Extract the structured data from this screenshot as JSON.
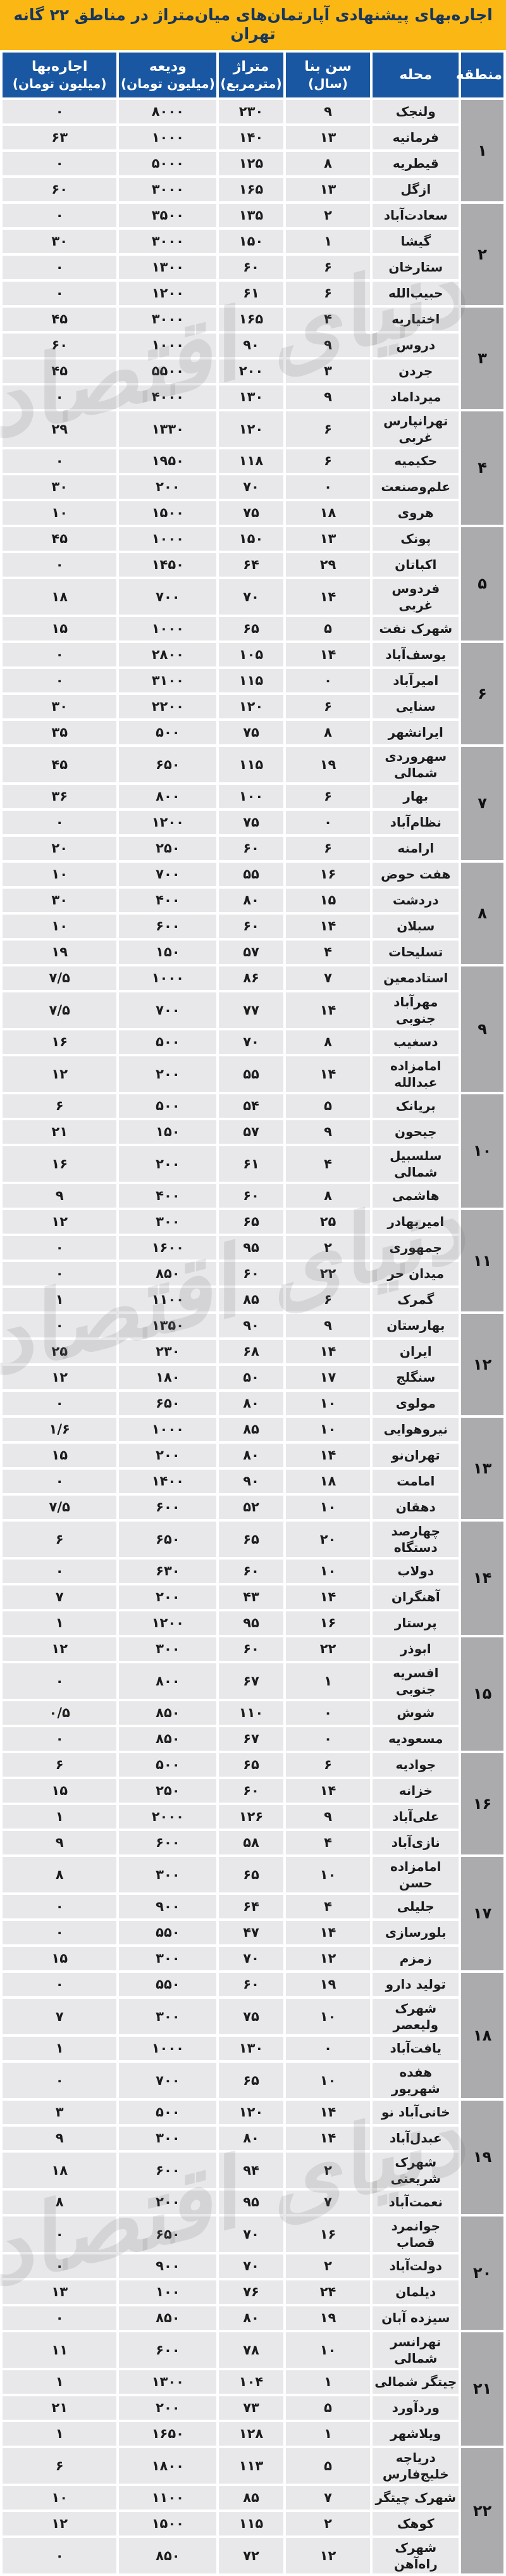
{
  "title": "اجاره‌بهای پیشنهادی آپارتمان‌های میان‌متراژ در مناطق ۲۲ گانه تهران",
  "watermark_text": "دنیای اقتصاد",
  "colors": {
    "title_bg": "#fbb713",
    "title_text": "#17365d",
    "header_bg": "#1a57a2",
    "header_text": "#ffffff",
    "row_bg": "#e8e8ea",
    "district_bg": "#ababae",
    "gap": "#ffffff"
  },
  "columns": [
    {
      "key": "district",
      "label": "منطقه",
      "unit": ""
    },
    {
      "key": "name",
      "label": "محله",
      "unit": ""
    },
    {
      "key": "age",
      "label": "سن بنا",
      "unit": "(سال)"
    },
    {
      "key": "area",
      "label": "متراژ",
      "unit": "(مترمربع)"
    },
    {
      "key": "deposit",
      "label": "ودیعه",
      "unit": "(میلیون تومان)"
    },
    {
      "key": "rent",
      "label": "اجاره‌بها",
      "unit": "(میلیون تومان)"
    }
  ],
  "districts": [
    {
      "district": "۱",
      "rows": [
        {
          "name": "ولنجک",
          "age": "۹",
          "area": "۲۳۰",
          "deposit": "۸۰۰۰",
          "rent": "۰"
        },
        {
          "name": "فرمانیه",
          "age": "۱۳",
          "area": "۱۴۰",
          "deposit": "۱۰۰۰",
          "rent": "۶۳"
        },
        {
          "name": "قیطریه",
          "age": "۸",
          "area": "۱۲۵",
          "deposit": "۵۰۰۰",
          "rent": "۰"
        },
        {
          "name": "ازگل",
          "age": "۱۳",
          "area": "۱۶۵",
          "deposit": "۳۰۰۰",
          "rent": "۶۰"
        }
      ]
    },
    {
      "district": "۲",
      "rows": [
        {
          "name": "سعادت‌آباد",
          "age": "۲",
          "area": "۱۳۵",
          "deposit": "۳۵۰۰",
          "rent": "۰"
        },
        {
          "name": "گیشا",
          "age": "۱",
          "area": "۱۵۰",
          "deposit": "۳۰۰۰",
          "rent": "۳۰"
        },
        {
          "name": "ستارخان",
          "age": "۶",
          "area": "۶۰",
          "deposit": "۱۳۰۰",
          "rent": "۰"
        },
        {
          "name": "حبیب‌الله",
          "age": "۶",
          "area": "۶۱",
          "deposit": "۱۲۰۰",
          "rent": "۰"
        }
      ]
    },
    {
      "district": "۳",
      "rows": [
        {
          "name": "اختیاریه",
          "age": "۴",
          "area": "۱۶۵",
          "deposit": "۳۰۰۰",
          "rent": "۴۵"
        },
        {
          "name": "دروس",
          "age": "۹",
          "area": "۹۰",
          "deposit": "۱۰۰۰",
          "rent": "۶۰"
        },
        {
          "name": "جردن",
          "age": "۳",
          "area": "۲۰۰",
          "deposit": "۵۵۰۰",
          "rent": "۴۵"
        },
        {
          "name": "میرداماد",
          "age": "۹",
          "area": "۱۳۰",
          "deposit": "۴۰۰۰",
          "rent": "۰"
        }
      ]
    },
    {
      "district": "۴",
      "rows": [
        {
          "name": "تهرانپارس\nغربی",
          "age": "۶",
          "area": "۱۲۰",
          "deposit": "۱۳۳۰",
          "rent": "۲۹"
        },
        {
          "name": "حکیمیه",
          "age": "۶",
          "area": "۱۱۸",
          "deposit": "۱۹۵۰",
          "rent": "۰"
        },
        {
          "name": "علم‌وصنعت",
          "age": "۰",
          "area": "۷۰",
          "deposit": "۲۰۰",
          "rent": "۳۰"
        },
        {
          "name": "هروی",
          "age": "۱۸",
          "area": "۷۵",
          "deposit": "۱۵۰۰",
          "rent": "۱۰"
        }
      ]
    },
    {
      "district": "۵",
      "rows": [
        {
          "name": "پونک",
          "age": "۱۳",
          "area": "۱۵۰",
          "deposit": "۱۰۰۰",
          "rent": "۴۵"
        },
        {
          "name": "اکباتان",
          "age": "۲۹",
          "area": "۶۴",
          "deposit": "۱۴۵۰",
          "rent": "۰"
        },
        {
          "name": "فردوس غربی",
          "age": "۱۴",
          "area": "۷۰",
          "deposit": "۷۰۰",
          "rent": "۱۸"
        },
        {
          "name": "شهرک نفت",
          "age": "۵",
          "area": "۶۵",
          "deposit": "۱۰۰۰",
          "rent": "۱۵"
        }
      ]
    },
    {
      "district": "۶",
      "rows": [
        {
          "name": "یوسف‌آباد",
          "age": "۱۴",
          "area": "۱۰۵",
          "deposit": "۲۸۰۰",
          "rent": "۰"
        },
        {
          "name": "امیرآباد",
          "age": "۰",
          "area": "۱۱۵",
          "deposit": "۳۱۰۰",
          "rent": "۰"
        },
        {
          "name": "سنایی",
          "age": "۶",
          "area": "۱۲۰",
          "deposit": "۲۲۰۰",
          "rent": "۳۰"
        },
        {
          "name": "ایرانشهر",
          "age": "۸",
          "area": "۷۵",
          "deposit": "۵۰۰",
          "rent": "۳۵"
        }
      ]
    },
    {
      "district": "۷",
      "rows": [
        {
          "name": "سهروردی\nشمالی",
          "age": "۱۹",
          "area": "۱۱۵",
          "deposit": "۶۵۰",
          "rent": "۴۵"
        },
        {
          "name": "بهار",
          "age": "۶",
          "area": "۱۰۰",
          "deposit": "۸۰۰",
          "rent": "۳۶"
        },
        {
          "name": "نظام‌آباد",
          "age": "۰",
          "area": "۷۵",
          "deposit": "۱۲۰۰",
          "rent": "۰"
        },
        {
          "name": "ارامنه",
          "age": "۶",
          "area": "۶۰",
          "deposit": "۲۵۰",
          "rent": "۲۰"
        }
      ]
    },
    {
      "district": "۸",
      "rows": [
        {
          "name": "هفت حوض",
          "age": "۱۶",
          "area": "۵۵",
          "deposit": "۷۰۰",
          "rent": "۱۰"
        },
        {
          "name": "دردشت",
          "age": "۱۵",
          "area": "۸۰",
          "deposit": "۴۰۰",
          "rent": "۳۰"
        },
        {
          "name": "سبلان",
          "age": "۱۴",
          "area": "۶۰",
          "deposit": "۶۰۰",
          "rent": "۱۰"
        },
        {
          "name": "تسلیحات",
          "age": "۴",
          "area": "۵۷",
          "deposit": "۱۵۰",
          "rent": "۱۹"
        }
      ]
    },
    {
      "district": "۹",
      "rows": [
        {
          "name": "استادمعین",
          "age": "۷",
          "area": "۸۶",
          "deposit": "۱۰۰۰",
          "rent": "۷/۵"
        },
        {
          "name": "مهرآباد جنوبی",
          "age": "۱۴",
          "area": "۷۷",
          "deposit": "۷۰۰",
          "rent": "۷/۵"
        },
        {
          "name": "دسغیب",
          "age": "۸",
          "area": "۷۰",
          "deposit": "۵۰۰",
          "rent": "۱۶"
        },
        {
          "name": "امامزاده\nعبدالله",
          "age": "۱۴",
          "area": "۵۵",
          "deposit": "۲۰۰",
          "rent": "۱۲"
        }
      ]
    },
    {
      "district": "۱۰",
      "rows": [
        {
          "name": "بریانک",
          "age": "۵",
          "area": "۵۴",
          "deposit": "۵۰۰",
          "rent": "۶"
        },
        {
          "name": "جیحون",
          "age": "۹",
          "area": "۵۷",
          "deposit": "۱۵۰",
          "rent": "۲۱"
        },
        {
          "name": "سلسبیل\nشمالی",
          "age": "۴",
          "area": "۶۱",
          "deposit": "۲۰۰",
          "rent": "۱۶"
        },
        {
          "name": "هاشمی",
          "age": "۸",
          "area": "۶۰",
          "deposit": "۴۰۰",
          "rent": "۹"
        }
      ]
    },
    {
      "district": "۱۱",
      "rows": [
        {
          "name": "امیربهادر",
          "age": "۲۵",
          "area": "۶۵",
          "deposit": "۳۰۰",
          "rent": "۱۲"
        },
        {
          "name": "جمهوری",
          "age": "۲",
          "area": "۹۵",
          "deposit": "۱۶۰۰",
          "rent": "۰"
        },
        {
          "name": "میدان حر",
          "age": "۲۲",
          "area": "۶۰",
          "deposit": "۸۵۰",
          "rent": "۰"
        },
        {
          "name": "گمرک",
          "age": "۶",
          "area": "۸۵",
          "deposit": "۱۱۰۰",
          "rent": "۱"
        }
      ]
    },
    {
      "district": "۱۲",
      "rows": [
        {
          "name": "بهارستان",
          "age": "۹",
          "area": "۹۰",
          "deposit": "۱۳۵۰",
          "rent": "۰"
        },
        {
          "name": "ایران",
          "age": "۱۴",
          "area": "۶۸",
          "deposit": "۲۳۰",
          "rent": "۲۵"
        },
        {
          "name": "سنگلج",
          "age": "۱۷",
          "area": "۵۰",
          "deposit": "۱۸۰",
          "rent": "۱۲"
        },
        {
          "name": "مولوی",
          "age": "۱۰",
          "area": "۸۰",
          "deposit": "۶۵۰",
          "rent": "۰"
        }
      ]
    },
    {
      "district": "۱۳",
      "rows": [
        {
          "name": "نیروهوایی",
          "age": "۱۰",
          "area": "۸۵",
          "deposit": "۱۰۰۰",
          "rent": "۱/۶"
        },
        {
          "name": "تهران‌نو",
          "age": "۱۴",
          "area": "۸۰",
          "deposit": "۲۰۰",
          "rent": "۱۵"
        },
        {
          "name": "امامت",
          "age": "۱۸",
          "area": "۹۰",
          "deposit": "۱۴۰۰",
          "rent": "۰"
        },
        {
          "name": "دهقان",
          "age": "۱۰",
          "area": "۵۲",
          "deposit": "۶۰۰",
          "rent": "۷/۵"
        }
      ]
    },
    {
      "district": "۱۴",
      "rows": [
        {
          "name": "چهارصد\nدستگاه",
          "age": "۲۰",
          "area": "۶۵",
          "deposit": "۶۵۰",
          "rent": "۶"
        },
        {
          "name": "دولاب",
          "age": "۱۰",
          "area": "۶۰",
          "deposit": "۶۳۰",
          "rent": "۰"
        },
        {
          "name": "آهنگران",
          "age": "۱۴",
          "area": "۴۳",
          "deposit": "۲۰۰",
          "rent": "۷"
        },
        {
          "name": "پرستار",
          "age": "۱۶",
          "area": "۹۵",
          "deposit": "۱۲۰۰",
          "rent": "۱"
        }
      ]
    },
    {
      "district": "۱۵",
      "rows": [
        {
          "name": "ابوذر",
          "age": "۲۲",
          "area": "۶۰",
          "deposit": "۳۰۰",
          "rent": "۱۲"
        },
        {
          "name": "افسریه جنوبی",
          "age": "۱",
          "area": "۶۷",
          "deposit": "۸۰۰",
          "rent": "۰"
        },
        {
          "name": "شوش",
          "age": "۰",
          "area": "۱۱۰",
          "deposit": "۸۵۰",
          "rent": "۰/۵"
        },
        {
          "name": "مسعودیه",
          "age": "۰",
          "area": "۶۷",
          "deposit": "۸۵۰",
          "rent": "۰"
        }
      ]
    },
    {
      "district": "۱۶",
      "rows": [
        {
          "name": "جوادیه",
          "age": "۶",
          "area": "۶۵",
          "deposit": "۵۰۰",
          "rent": "۶"
        },
        {
          "name": "خزانه",
          "age": "۱۴",
          "area": "۶۰",
          "deposit": "۲۵۰",
          "rent": "۱۵"
        },
        {
          "name": "علی‌آباد",
          "age": "۹",
          "area": "۱۲۶",
          "deposit": "۲۰۰۰",
          "rent": "۱"
        },
        {
          "name": "نازی‌آباد",
          "age": "۴",
          "area": "۵۸",
          "deposit": "۶۰۰",
          "rent": "۹"
        }
      ]
    },
    {
      "district": "۱۷",
      "rows": [
        {
          "name": "امامزاده حسن",
          "age": "۱۰",
          "area": "۶۵",
          "deposit": "۳۰۰",
          "rent": "۸"
        },
        {
          "name": "جلیلی",
          "age": "۴",
          "area": "۶۴",
          "deposit": "۹۰۰",
          "rent": "۰"
        },
        {
          "name": "بلورسازی",
          "age": "۱۴",
          "area": "۴۷",
          "deposit": "۵۵۰",
          "rent": "۰"
        },
        {
          "name": "زمزم",
          "age": "۱۲",
          "area": "۷۰",
          "deposit": "۳۰۰",
          "rent": "۱۵"
        }
      ]
    },
    {
      "district": "۱۸",
      "rows": [
        {
          "name": "تولید دارو",
          "age": "۱۹",
          "area": "۶۰",
          "deposit": "۵۵۰",
          "rent": "۰"
        },
        {
          "name": "شهرک ولیعصر",
          "age": "۱۰",
          "area": "۷۵",
          "deposit": "۳۰۰",
          "rent": "۷"
        },
        {
          "name": "یافت‌آباد",
          "age": "۰",
          "area": "۱۳۰",
          "deposit": "۱۰۰۰",
          "rent": "۱"
        },
        {
          "name": "هفده شهریور",
          "age": "۱۰",
          "area": "۶۵",
          "deposit": "۷۰۰",
          "rent": "۰"
        }
      ]
    },
    {
      "district": "۱۹",
      "rows": [
        {
          "name": "خانی‌آباد نو",
          "age": "۱۴",
          "area": "۱۲۰",
          "deposit": "۵۰۰",
          "rent": "۳"
        },
        {
          "name": "عبدل‌آباد",
          "age": "۱۴",
          "area": "۸۰",
          "deposit": "۳۰۰",
          "rent": "۹"
        },
        {
          "name": "شهرک\nشریعتی",
          "age": "۲",
          "area": "۹۴",
          "deposit": "۶۰۰",
          "rent": "۱۸"
        },
        {
          "name": "نعمت‌آباد",
          "age": "۷",
          "area": "۹۵",
          "deposit": "۲۰۰",
          "rent": "۸"
        }
      ]
    },
    {
      "district": "۲۰",
      "rows": [
        {
          "name": "جوانمرد\nقصاب",
          "age": "۱۶",
          "area": "۷۰",
          "deposit": "۶۵۰",
          "rent": "۰"
        },
        {
          "name": "دولت‌آباد",
          "age": "۲",
          "area": "۷۰",
          "deposit": "۹۰۰",
          "rent": "۰"
        },
        {
          "name": "دیلمان",
          "age": "۲۴",
          "area": "۷۶",
          "deposit": "۱۰۰",
          "rent": "۱۳"
        },
        {
          "name": "سیزده آبان",
          "age": "۱۹",
          "area": "۸۰",
          "deposit": "۸۵۰",
          "rent": "۰"
        }
      ]
    },
    {
      "district": "۲۱",
      "rows": [
        {
          "name": "تهرانسر شمالی",
          "age": "۱۰",
          "area": "۷۸",
          "deposit": "۶۰۰",
          "rent": "۱۱"
        },
        {
          "name": "چیتگر شمالی",
          "age": "۱",
          "area": "۱۰۴",
          "deposit": "۱۳۰۰",
          "rent": "۱"
        },
        {
          "name": "وردآورد",
          "age": "۵",
          "area": "۷۳",
          "deposit": "۲۰۰",
          "rent": "۲۱"
        },
        {
          "name": "ویلاشهر",
          "age": "۱",
          "area": "۱۲۸",
          "deposit": "۱۶۵۰",
          "rent": "۱"
        }
      ]
    },
    {
      "district": "۲۲",
      "rows": [
        {
          "name": "دریاچه\nخلیج‌فارس",
          "age": "۵",
          "area": "۱۱۳",
          "deposit": "۱۸۰۰",
          "rent": "۶"
        },
        {
          "name": "شهرک چیتگر",
          "age": "۷",
          "area": "۸۵",
          "deposit": "۱۱۰۰",
          "rent": "۱۰"
        },
        {
          "name": "کوهک",
          "age": "۲",
          "area": "۱۱۵",
          "deposit": "۱۵۰۰",
          "rent": "۱۲"
        },
        {
          "name": "شهرک راه‌آهن",
          "age": "۱۲",
          "area": "۷۲",
          "deposit": "۸۵۰",
          "rent": "۰"
        }
      ]
    }
  ]
}
